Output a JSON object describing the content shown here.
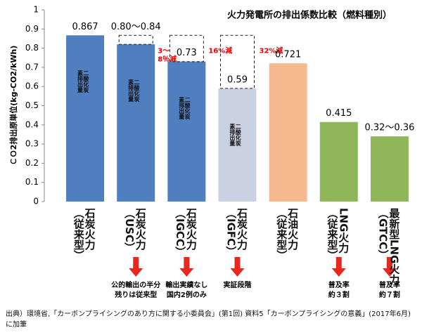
{
  "chart_data": {
    "type": "bar",
    "title": "火力発電所の排出係数比較（燃料種別）",
    "y_label": "ＣＯ2排出原単位(kg-CO2/kWh)",
    "categories": [
      "石炭火力\n（従来型）",
      "石炭火力\n（USC）",
      "石炭火力\n（IGCC）",
      "石炭火力\n（IGFC）",
      "石油火力\n（従来型）",
      "LNG火力\n（従来型）",
      "最新型LNG火力\n（GTCC）"
    ],
    "values": [
      0.867,
      0.82,
      0.73,
      0.59,
      0.721,
      0.415,
      0.34
    ],
    "value_labels": [
      "0.867",
      "0.80～0.84",
      "0.73",
      "0.59",
      "0.721",
      "0.415",
      "0.32～0.36"
    ],
    "colors": [
      "#4f7fbf",
      "#4f7fbf",
      "#4f7fbf",
      "#c9d1e3",
      "#f5b98d",
      "#90b65a",
      "#90b65a"
    ],
    "bar_texts": [
      "二酸化炭\n素排出量",
      "二酸化炭\n素排出量",
      "二酸化炭\n素排出量",
      "二酸化炭\n素排出量",
      null,
      null,
      null
    ],
    "reductions": [
      null,
      "3～\n8％減",
      "16%減",
      "32%減",
      null,
      null,
      null
    ],
    "notes": [
      null,
      "公的輸出の半分\n残りは従来型",
      "輸出実績なし\n国内2例のみ",
      "実証段階",
      null,
      "普及率\n約３割",
      "普及率\n約７割"
    ],
    "ylim": [
      0,
      1
    ],
    "yticks": [
      0,
      0.1,
      0.2,
      0.3,
      0.4,
      0.5,
      0.6,
      0.7,
      0.8,
      0.9,
      1
    ],
    "source": "出典）環境省,「カーボンプライシングのあり方に関する小委員会」(第1回) 資料5「カーボンプライシングの意義」(2017年6月) に加筆"
  }
}
